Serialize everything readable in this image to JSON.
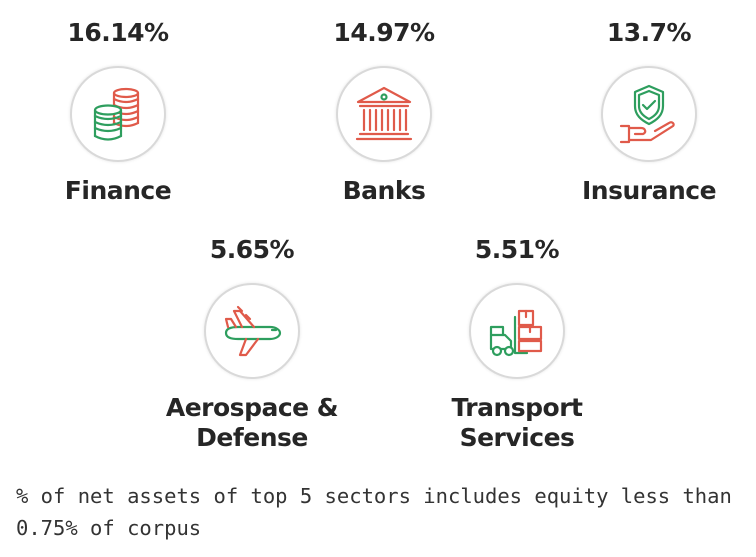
{
  "colors": {
    "green": "#2e9e5e",
    "red": "#e05a4a",
    "circle_border": "#d9d9d9"
  },
  "sectors": [
    {
      "percent": "16.14%",
      "name": "Finance",
      "icon": "coins-icon"
    },
    {
      "percent": "14.97%",
      "name": "Banks",
      "icon": "bank-building-icon"
    },
    {
      "percent": "13.7%",
      "name": "Insurance",
      "icon": "shield-hand-icon"
    },
    {
      "percent": "5.65%",
      "name": "Aerospace &\nDefense",
      "icon": "airplane-icon"
    },
    {
      "percent": "5.51%",
      "name": "Transport\nServices",
      "icon": "forklift-icon"
    }
  ],
  "footnote": "% of net assets of top 5 sectors includes equity less than 0.75% of corpus"
}
